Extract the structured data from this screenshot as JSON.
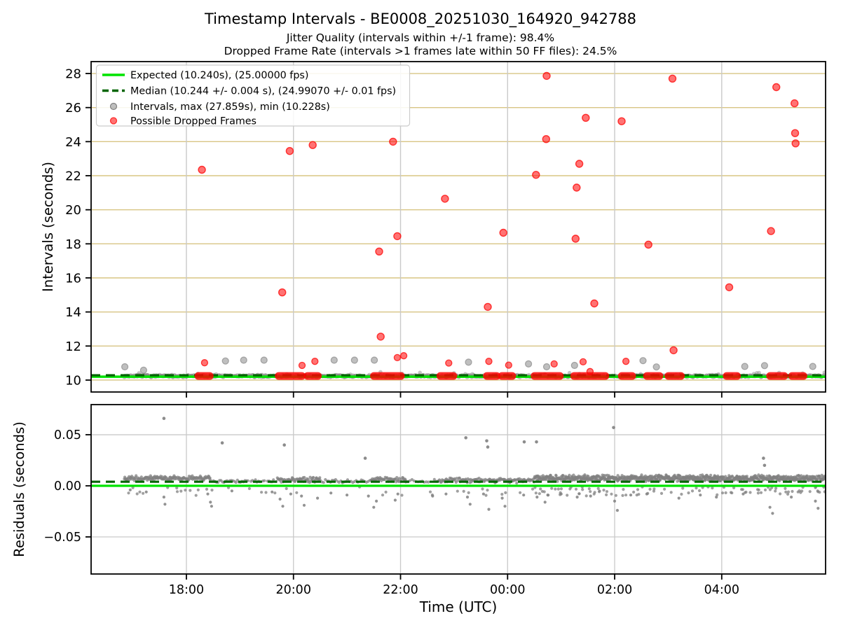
{
  "header": {
    "title": "Timestamp Intervals - BE0008_20251030_164920_942788",
    "subtitle1": "Jitter Quality (intervals within +/-1 frame): 98.4%",
    "subtitle2": "Dropped Frame Rate (intervals >1 frames late within 50 FF files): 24.5%"
  },
  "chart_data": {
    "type": "scatter",
    "x": {
      "label": "Time (UTC)",
      "lim": [
        16.22,
        29.94
      ],
      "ticks": [
        18,
        20,
        22,
        24,
        26,
        28
      ],
      "tick_labels": [
        "18:00",
        "20:00",
        "22:00",
        "00:00",
        "02:00",
        "04:00"
      ]
    },
    "top": {
      "ylabel": "Intervals (seconds)",
      "ylim": [
        9.3,
        28.7
      ],
      "yticks": [
        10,
        12,
        14,
        16,
        18,
        20,
        22,
        24,
        26,
        28
      ],
      "expected_seconds": 10.24,
      "median_seconds": 10.244,
      "max_seconds": 27.859,
      "min_seconds": 10.228,
      "legend": [
        {
          "marker": "line-solid",
          "label": "Expected (10.240s), (25.00000 fps)"
        },
        {
          "marker": "line-dashed",
          "label": "Median (10.244 +/- 0.004 s), (24.99070 +/- 0.01 fps)"
        },
        {
          "marker": "dot-gray",
          "label": "Intervals, max (27.859s), min (10.228s)"
        },
        {
          "marker": "dot-red",
          "label": "Possible Dropped Frames"
        }
      ],
      "interval_band_range": [
        16.84,
        29.94
      ],
      "interval_band_level": 10.24,
      "gray_elevated_points": [
        [
          16.85,
          10.78
        ],
        [
          17.2,
          10.58
        ],
        [
          18.73,
          11.12
        ],
        [
          19.07,
          11.17
        ],
        [
          19.45,
          11.17
        ],
        [
          20.76,
          11.17
        ],
        [
          21.14,
          11.17
        ],
        [
          21.51,
          11.17
        ],
        [
          23.27,
          11.05
        ],
        [
          24.39,
          10.95
        ],
        [
          24.73,
          10.78
        ],
        [
          25.25,
          10.86
        ],
        [
          26.53,
          11.14
        ],
        [
          26.78,
          10.77
        ],
        [
          28.43,
          10.8
        ],
        [
          28.8,
          10.85
        ],
        [
          29.7,
          10.8
        ]
      ],
      "dropped_outlier_points": [
        [
          18.29,
          22.35
        ],
        [
          19.79,
          15.15
        ],
        [
          19.93,
          23.45
        ],
        [
          20.36,
          23.8
        ],
        [
          21.6,
          17.55
        ],
        [
          21.63,
          12.55
        ],
        [
          21.86,
          24.0
        ],
        [
          21.94,
          18.45
        ],
        [
          22.83,
          20.65
        ],
        [
          23.63,
          14.3
        ],
        [
          23.92,
          18.65
        ],
        [
          24.53,
          22.05
        ],
        [
          24.72,
          24.15
        ],
        [
          24.73,
          27.86
        ],
        [
          25.27,
          18.3
        ],
        [
          25.29,
          21.3
        ],
        [
          25.34,
          22.7
        ],
        [
          25.46,
          25.4
        ],
        [
          25.62,
          14.5
        ],
        [
          26.13,
          25.2
        ],
        [
          26.63,
          17.95
        ],
        [
          27.08,
          27.7
        ],
        [
          27.1,
          11.75
        ],
        [
          28.14,
          15.45
        ],
        [
          28.92,
          18.75
        ],
        [
          29.02,
          27.2
        ],
        [
          29.36,
          26.25
        ],
        [
          29.37,
          24.5
        ],
        [
          29.38,
          23.9
        ]
      ],
      "dropped_small_points": [
        [
          18.34,
          11.02
        ],
        [
          20.16,
          10.86
        ],
        [
          20.4,
          11.1
        ],
        [
          21.94,
          11.32
        ],
        [
          22.06,
          11.43
        ],
        [
          22.9,
          11.0
        ],
        [
          23.65,
          11.1
        ],
        [
          24.02,
          10.88
        ],
        [
          24.87,
          10.95
        ],
        [
          25.41,
          11.07
        ],
        [
          25.54,
          10.5
        ],
        [
          26.21,
          11.1
        ]
      ],
      "dropped_baseline_segments": [
        [
          18.21,
          18.45
        ],
        [
          19.71,
          20.17
        ],
        [
          20.25,
          20.47
        ],
        [
          21.49,
          22.02
        ],
        [
          22.73,
          23.0
        ],
        [
          23.6,
          23.81
        ],
        [
          23.88,
          24.1
        ],
        [
          24.49,
          24.99
        ],
        [
          25.23,
          25.84
        ],
        [
          26.12,
          26.34
        ],
        [
          26.59,
          26.85
        ],
        [
          26.99,
          27.25
        ],
        [
          28.08,
          28.3
        ],
        [
          28.89,
          29.18
        ],
        [
          29.3,
          29.54
        ]
      ]
    },
    "bottom": {
      "ylabel": "Residuals (seconds)",
      "ylim": [
        -0.0863,
        0.0795
      ],
      "yticks": [
        {
          "v": 0.05,
          "label": "0.05"
        },
        {
          "v": 0.0,
          "label": "0.00"
        },
        {
          "v": -0.05,
          "label": "−0.05"
        }
      ],
      "expected_level": 0.0,
      "median_level": 0.004,
      "band_segments": [
        [
          16.84,
          18.45,
          0.0075,
          0.0028,
          0.01
        ],
        [
          18.45,
          19.7,
          0.0045,
          0.002,
          0.028
        ],
        [
          19.7,
          20.5,
          0.006,
          0.0028,
          0.012
        ],
        [
          20.5,
          21.45,
          0.0045,
          0.002,
          0.032
        ],
        [
          21.45,
          22.1,
          0.006,
          0.0028,
          0.012
        ],
        [
          22.1,
          22.7,
          0.0045,
          0.002,
          0.038
        ],
        [
          22.7,
          24.5,
          0.0055,
          0.0028,
          0.013
        ],
        [
          24.5,
          29.94,
          0.0075,
          0.0035,
          0.006
        ]
      ],
      "high_outliers": [
        [
          17.58,
          0.066
        ],
        [
          18.67,
          0.042
        ],
        [
          19.83,
          0.04
        ],
        [
          21.34,
          0.027
        ],
        [
          23.22,
          0.047
        ],
        [
          23.61,
          0.044
        ],
        [
          23.63,
          0.038
        ],
        [
          24.31,
          0.043
        ],
        [
          24.54,
          0.043
        ],
        [
          25.98,
          0.057
        ],
        [
          28.78,
          0.027
        ],
        [
          28.8,
          0.02
        ]
      ],
      "low_dips": [
        [
          16.95,
          -0.004
        ],
        [
          17.25,
          -0.006
        ],
        [
          17.58,
          -0.011
        ],
        [
          17.6,
          -0.018
        ],
        [
          18.4,
          -0.008
        ],
        [
          18.45,
          -0.016
        ],
        [
          18.47,
          -0.02
        ],
        [
          18.85,
          -0.005
        ],
        [
          19.6,
          -0.006
        ],
        [
          19.75,
          -0.013
        ],
        [
          19.8,
          -0.02
        ],
        [
          19.95,
          -0.008
        ],
        [
          20.15,
          -0.01
        ],
        [
          20.2,
          -0.019
        ],
        [
          20.45,
          -0.012
        ],
        [
          20.7,
          -0.007
        ],
        [
          21.0,
          -0.009
        ],
        [
          21.4,
          -0.01
        ],
        [
          21.5,
          -0.021
        ],
        [
          21.55,
          -0.015
        ],
        [
          21.9,
          -0.014
        ],
        [
          21.95,
          -0.008
        ],
        [
          22.6,
          -0.01
        ],
        [
          22.85,
          -0.008
        ],
        [
          23.25,
          -0.011
        ],
        [
          23.3,
          -0.018
        ],
        [
          23.55,
          -0.008
        ],
        [
          23.65,
          -0.023
        ],
        [
          23.9,
          -0.012
        ],
        [
          23.95,
          -0.02
        ],
        [
          24.3,
          -0.009
        ],
        [
          24.55,
          -0.011
        ],
        [
          24.7,
          -0.016
        ],
        [
          24.75,
          -0.009
        ],
        [
          25.0,
          -0.008
        ],
        [
          25.3,
          -0.011
        ],
        [
          25.55,
          -0.01
        ],
        [
          26.0,
          -0.015
        ],
        [
          26.05,
          -0.024
        ],
        [
          26.3,
          -0.009
        ],
        [
          26.6,
          -0.008
        ],
        [
          27.2,
          -0.012
        ],
        [
          27.6,
          -0.009
        ],
        [
          27.9,
          -0.011
        ],
        [
          28.4,
          -0.008
        ],
        [
          28.9,
          -0.021
        ],
        [
          28.95,
          -0.027
        ],
        [
          29.3,
          -0.011
        ],
        [
          29.75,
          -0.015
        ],
        [
          29.8,
          -0.022
        ]
      ]
    },
    "colors": {
      "expected_line": "#00e400",
      "median_line": "#006400",
      "gray_point": "#808080",
      "red_point": "#ff0000",
      "grid_tan": "#d8c584",
      "grid_gray": "#c9c9c9",
      "spine": "#000000"
    }
  }
}
